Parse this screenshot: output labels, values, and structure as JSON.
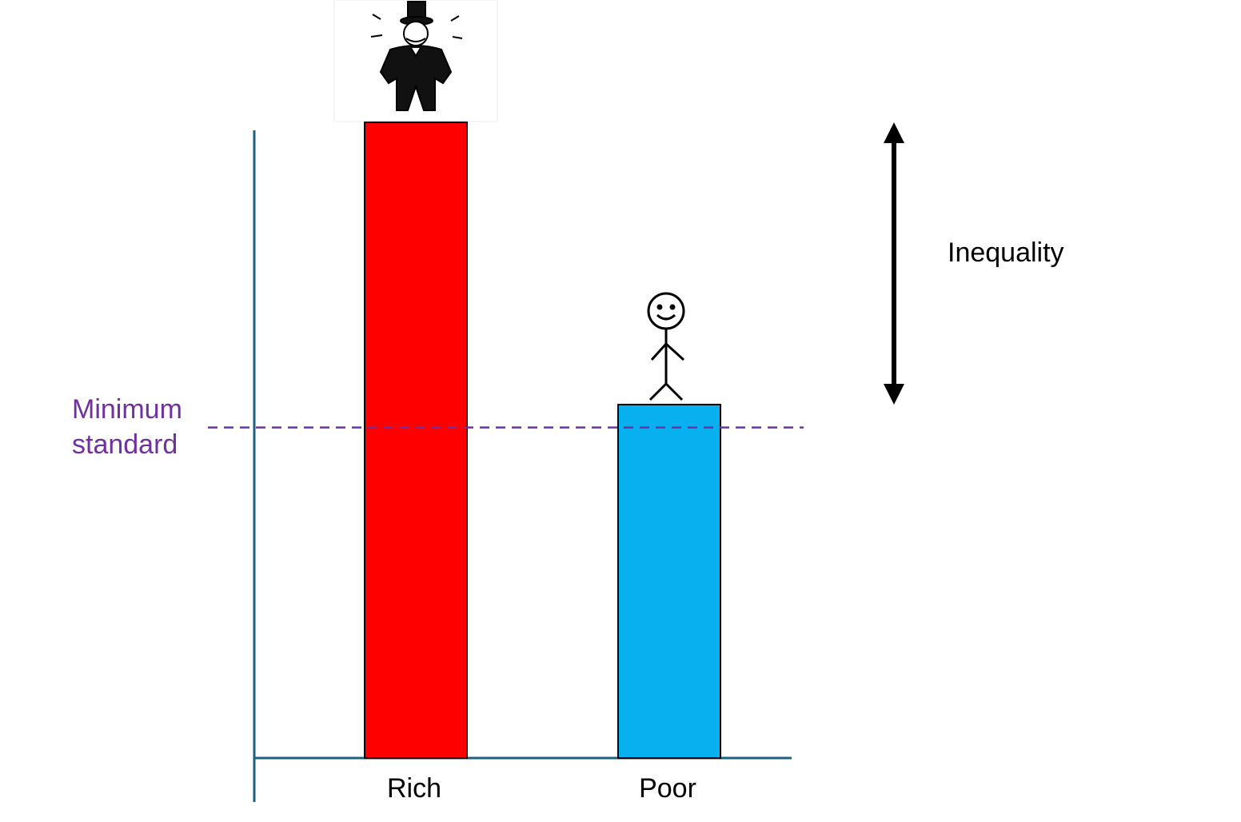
{
  "chart_data": {
    "type": "bar",
    "categories": [
      "Rich",
      "Poor"
    ],
    "values": [
      100,
      55.6
    ],
    "colors": [
      "#ff0000",
      "#08b0ef"
    ],
    "ylim": [
      0,
      100
    ],
    "reference_line": {
      "value": 52,
      "label": "Minimum standard",
      "color": "#7030a0"
    },
    "annotation": "Inequality"
  }
}
